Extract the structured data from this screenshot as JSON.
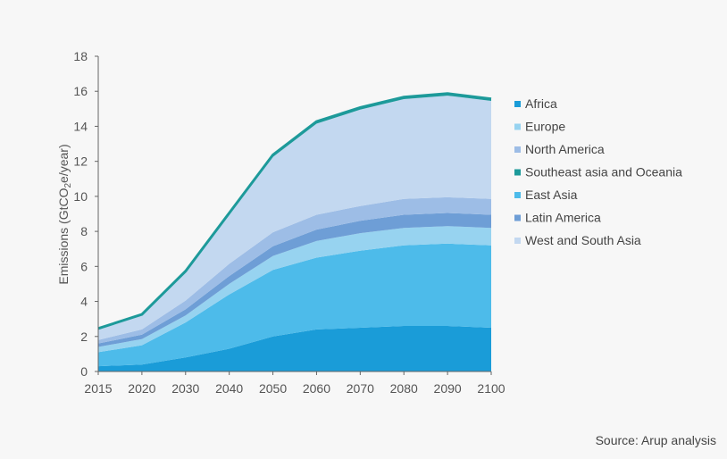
{
  "chart_data": {
    "type": "area",
    "stacked": true,
    "title": "",
    "xlabel": "",
    "ylabel_prefix": "Emissions (GtCO",
    "ylabel_sub": "2",
    "ylabel_suffix": "e/year)",
    "ylim": [
      0,
      18
    ],
    "yticks": [
      "0",
      "2",
      "4",
      "6",
      "8",
      "10",
      "12",
      "14",
      "16",
      "18"
    ],
    "categories": [
      "2015",
      "2020",
      "2030",
      "2040",
      "2050",
      "2060",
      "2070",
      "2080",
      "2090",
      "2100"
    ],
    "legend_order": [
      "Africa",
      "Europe",
      "North America",
      "Southeast asia and Oceania",
      "East Asia",
      "Latin America",
      "West and South Asia"
    ],
    "series": [
      {
        "name": "Africa",
        "color": "#1a9cd8",
        "values": [
          0.3,
          0.4,
          0.8,
          1.3,
          2.0,
          2.4,
          2.5,
          2.6,
          2.6,
          2.5
        ]
      },
      {
        "name": "East Asia",
        "color": "#4dbbea",
        "values": [
          0.8,
          1.1,
          2.0,
          3.1,
          3.8,
          4.1,
          4.4,
          4.6,
          4.7,
          4.7
        ]
      },
      {
        "name": "Europe",
        "color": "#97d3f0",
        "values": [
          0.3,
          0.35,
          0.4,
          0.6,
          0.8,
          0.95,
          1.0,
          1.0,
          1.0,
          1.0
        ]
      },
      {
        "name": "Latin America",
        "color": "#6e9ed6",
        "values": [
          0.2,
          0.25,
          0.35,
          0.45,
          0.55,
          0.65,
          0.7,
          0.75,
          0.75,
          0.75
        ]
      },
      {
        "name": "North America",
        "color": "#9dbde6",
        "values": [
          0.2,
          0.3,
          0.5,
          0.7,
          0.8,
          0.85,
          0.85,
          0.9,
          0.9,
          0.9
        ]
      },
      {
        "name": "West and South Asia",
        "color": "#c3d8f0",
        "values": [
          0.6,
          0.8,
          1.6,
          2.8,
          4.3,
          5.2,
          5.5,
          5.7,
          5.8,
          5.6
        ]
      },
      {
        "name": "Southeast asia and Oceania",
        "color": "#1d9a9a",
        "values": [
          0.06,
          0.06,
          0.08,
          0.1,
          0.12,
          0.12,
          0.12,
          0.12,
          0.12,
          0.12
        ]
      }
    ]
  },
  "source": "Source: Arup analysis"
}
